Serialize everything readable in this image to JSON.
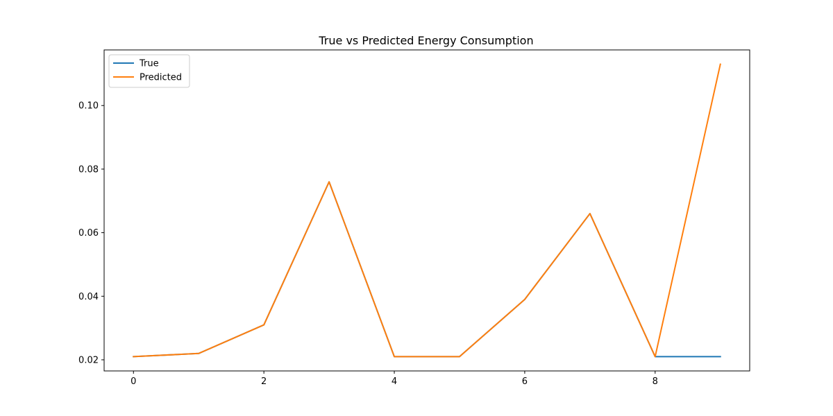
{
  "chart_data": {
    "type": "line",
    "title": "True vs Predicted Energy Consumption",
    "xlabel": "",
    "ylabel": "",
    "x": [
      0,
      1,
      2,
      3,
      4,
      5,
      6,
      7,
      8,
      9
    ],
    "xlim": [
      -0.45,
      9.45
    ],
    "ylim": [
      0.0165,
      0.1175
    ],
    "xticks": [
      0,
      2,
      4,
      6,
      8
    ],
    "xtick_labels": [
      "0",
      "2",
      "4",
      "6",
      "8"
    ],
    "yticks": [
      0.02,
      0.04,
      0.06,
      0.08,
      0.1
    ],
    "ytick_labels": [
      "0.02",
      "0.04",
      "0.06",
      "0.08",
      "0.10"
    ],
    "grid": false,
    "legend_position": "top-left",
    "series": [
      {
        "name": "True",
        "color": "#1f77b4",
        "values": [
          0.021,
          0.022,
          0.031,
          0.076,
          0.021,
          0.021,
          0.039,
          0.066,
          0.021,
          0.021
        ]
      },
      {
        "name": "Predicted",
        "color": "#ff7f0e",
        "values": [
          0.021,
          0.022,
          0.031,
          0.076,
          0.021,
          0.021,
          0.039,
          0.066,
          0.021,
          0.113
        ]
      }
    ]
  }
}
